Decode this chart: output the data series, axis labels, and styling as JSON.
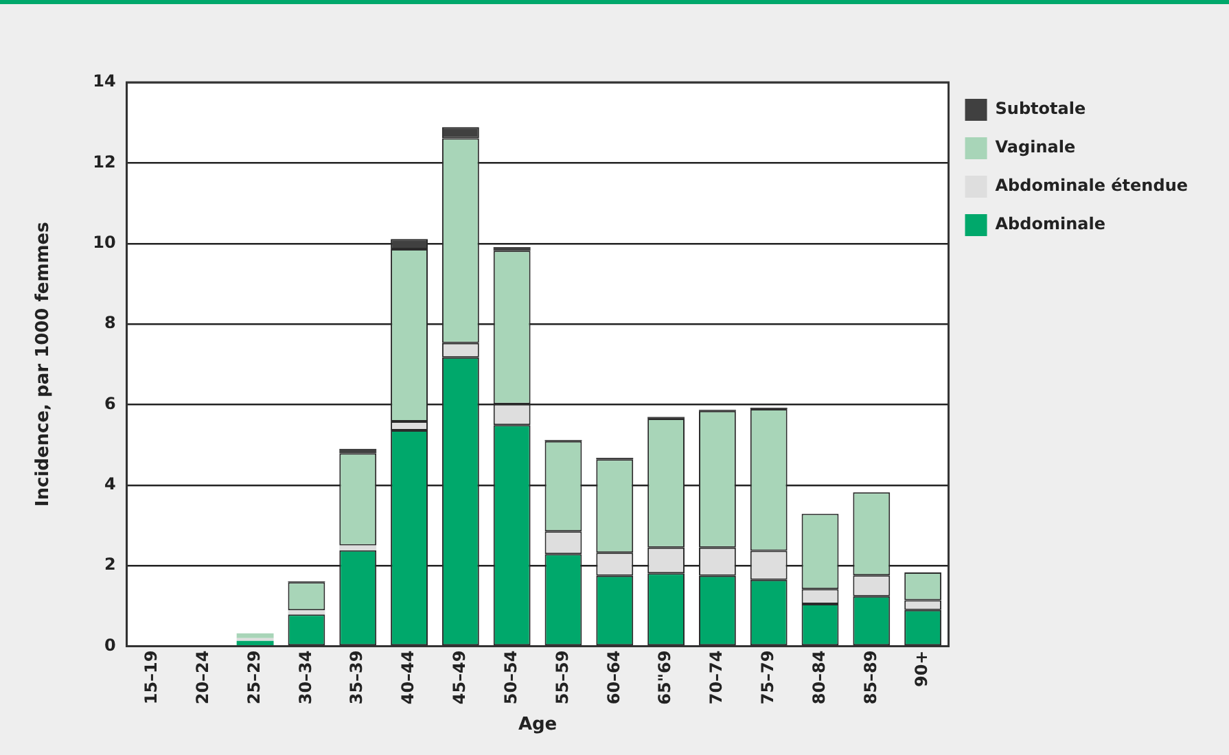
{
  "chart_data": {
    "type": "bar",
    "stacked": true,
    "xlabel": "Age",
    "ylabel": "Incidence, par 1000 femmes",
    "categories": [
      "15–19",
      "20–24",
      "25–29",
      "30–34",
      "35–39",
      "40–44",
      "45–49",
      "50–54",
      "55–59",
      "60–64",
      "65\"69",
      "70–74",
      "75–79",
      "80–84",
      "85–89",
      "90+"
    ],
    "series": [
      {
        "name": "Abdominale",
        "color": "#00a86b",
        "values": [
          0.02,
          0.02,
          0.13,
          0.79,
          2.38,
          5.36,
          7.17,
          5.49,
          2.29,
          1.75,
          1.81,
          1.75,
          1.65,
          1.05,
          1.24,
          0.9
        ]
      },
      {
        "name": "Abdominale étendue",
        "color": "#dedede",
        "values": [
          0,
          0,
          0.07,
          0.1,
          0.12,
          0.22,
          0.36,
          0.52,
          0.56,
          0.57,
          0.64,
          0.7,
          0.72,
          0.37,
          0.52,
          0.24
        ]
      },
      {
        "name": "Vaginale",
        "color": "#a8d5b8",
        "values": [
          0,
          0,
          0.12,
          0.7,
          2.29,
          4.28,
          5.08,
          3.81,
          2.24,
          2.32,
          3.2,
          3.39,
          3.52,
          1.87,
          2.06,
          0.69
        ]
      },
      {
        "name": "Subtotale",
        "color": "#404040",
        "values": [
          0,
          0,
          0,
          0.02,
          0.11,
          0.25,
          0.28,
          0.09,
          0.03,
          0.04,
          0.04,
          0.03,
          0.03,
          0,
          0,
          0
        ]
      }
    ],
    "ylim": [
      0,
      14
    ],
    "yticks": [
      0,
      2,
      4,
      6,
      8,
      10,
      12,
      14
    ],
    "grid": "y",
    "legend": "right"
  }
}
